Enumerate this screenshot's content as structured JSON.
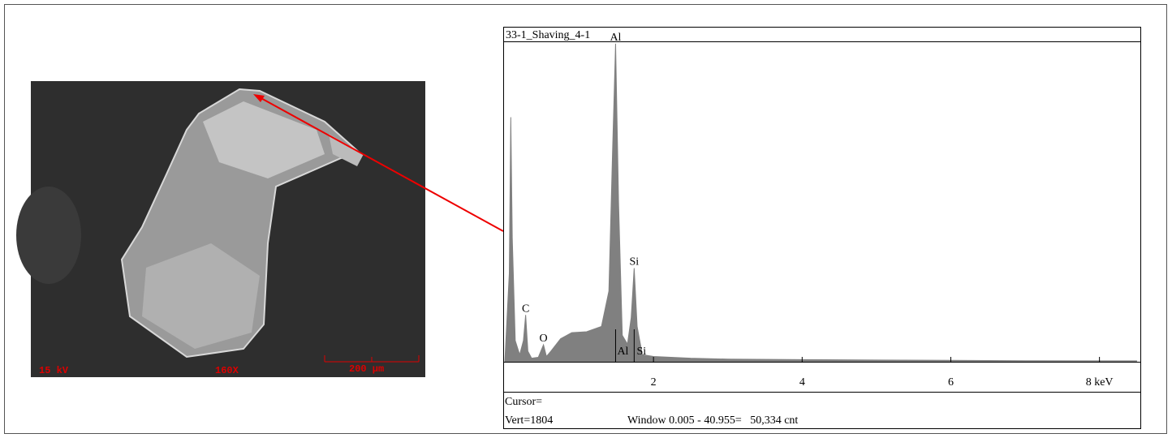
{
  "sem_image": {
    "voltage": "15 kV",
    "magnification": "160X",
    "scale_bar": "200 µm"
  },
  "chart_data": {
    "type": "area",
    "title": "33-1_Shaving_4-1",
    "color": "#808080",
    "x": [
      0,
      0.06,
      0.08,
      0.1,
      0.14,
      0.2,
      0.25,
      0.28,
      0.31,
      0.36,
      0.45,
      0.52,
      0.56,
      0.62,
      0.75,
      0.9,
      1.1,
      1.3,
      1.4,
      1.45,
      1.49,
      1.53,
      1.58,
      1.65,
      1.7,
      1.74,
      1.78,
      1.85,
      2.0,
      2.5,
      3,
      4,
      5,
      6,
      7,
      8,
      8.5
    ],
    "values": [
      0,
      500,
      1384,
      700,
      120,
      40,
      120,
      265,
      60,
      20,
      25,
      96,
      30,
      60,
      130,
      165,
      170,
      200,
      400,
      1200,
      1800,
      900,
      150,
      100,
      250,
      530,
      200,
      40,
      30,
      20,
      15,
      12,
      10,
      8,
      6,
      5,
      5
    ],
    "xlim": [
      0,
      8.55
    ],
    "ylim": [
      0,
      1804
    ],
    "xticks": [
      2,
      4,
      6,
      {
        "value": 8,
        "label": "8 keV"
      }
    ],
    "peak_labels": [
      {
        "text": "Al",
        "x": 1.49,
        "y": 1800
      },
      {
        "text": "Si",
        "x": 1.74,
        "y": 530
      },
      {
        "text": "C",
        "x": 0.28,
        "y": 265
      },
      {
        "text": "O",
        "x": 0.52,
        "y": 96
      }
    ],
    "line_markers": [
      {
        "text": "Al",
        "x": 1.49
      },
      {
        "text": "Si",
        "x": 1.74
      }
    ],
    "footer": {
      "cursor": "Cursor=",
      "vert": "Vert=1804",
      "window": "Window 0.005 - 40.955=   50,334 cnt"
    }
  }
}
